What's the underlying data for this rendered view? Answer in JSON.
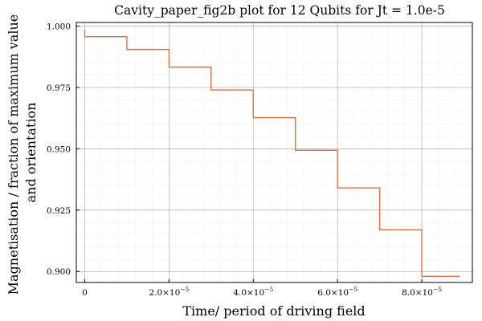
{
  "chart_data": {
    "type": "line",
    "title": "Cavity_paper_fig2b plot for 12 Qubits for Jt = 1.0e-5",
    "xlabel": "Time/ period of driving field",
    "ylabel_lines": [
      "Magnetisation / fraction of maximum value",
      "and orientation"
    ],
    "xlim": [
      -2e-06,
      9.2e-05
    ],
    "ylim": [
      0.8955,
      1.0015
    ],
    "grid": true,
    "legend": "none",
    "line_color": "#e26f46",
    "x_ticks": [
      {
        "value": 0,
        "mantissa": "0",
        "exponent": ""
      },
      {
        "value": 2e-05,
        "mantissa": "2.0×10",
        "exponent": "−5"
      },
      {
        "value": 4e-05,
        "mantissa": "4.0×10",
        "exponent": "−5"
      },
      {
        "value": 6e-05,
        "mantissa": "6.0×10",
        "exponent": "−5"
      },
      {
        "value": 8e-05,
        "mantissa": "8.0×10",
        "exponent": "−5"
      }
    ],
    "y_ticks": [
      {
        "value": 1.0,
        "label": "1.000"
      },
      {
        "value": 0.975,
        "label": "0.975"
      },
      {
        "value": 0.95,
        "label": "0.950"
      },
      {
        "value": 0.925,
        "label": "0.925"
      },
      {
        "value": 0.9,
        "label": "0.900"
      }
    ],
    "series": [
      {
        "x": [
          0,
          0,
          1e-05,
          1e-05,
          2e-05,
          2e-05,
          3e-05,
          3e-05,
          4e-05,
          4e-05,
          5e-05,
          5e-05,
          6e-05,
          6e-05,
          7e-05,
          7e-05,
          8e-05,
          8e-05,
          8.9e-05
        ],
        "y": [
          0.9985,
          0.9957,
          0.9957,
          0.9905,
          0.9905,
          0.9833,
          0.9833,
          0.974,
          0.974,
          0.9627,
          0.9627,
          0.9494,
          0.9494,
          0.9341,
          0.9341,
          0.917,
          0.917,
          0.898,
          0.898
        ]
      }
    ]
  }
}
